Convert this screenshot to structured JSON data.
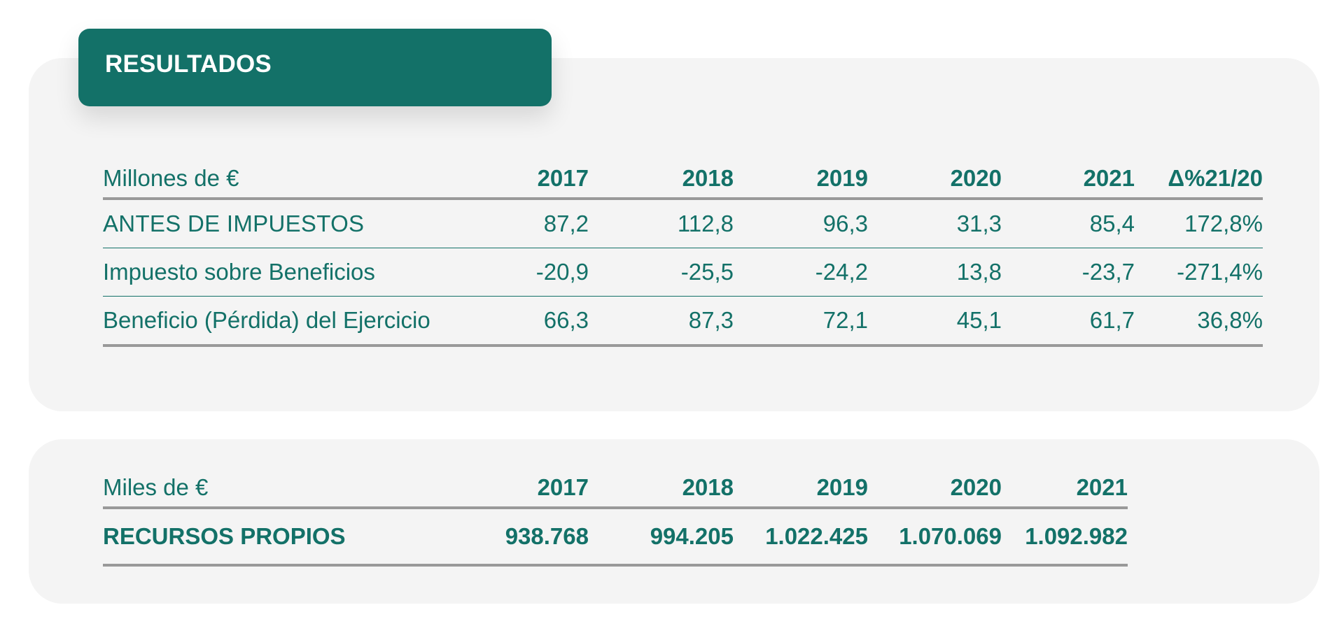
{
  "section_title": "RESULTADOS",
  "results_table": {
    "unit_label": "Millones de €",
    "columns": [
      "2017",
      "2018",
      "2019",
      "2020",
      "2021",
      "Δ%21/20"
    ],
    "rows": [
      {
        "label": "ANTES DE IMPUESTOS",
        "values": [
          "87,2",
          "112,8",
          "96,3",
          "31,3",
          "85,4",
          "172,8%"
        ]
      },
      {
        "label": "Impuesto sobre Beneficios",
        "values": [
          "-20,9",
          "-25,5",
          "-24,2",
          "13,8",
          "-23,7",
          "-271,4%"
        ]
      },
      {
        "label": "Beneficio (Pérdida) del Ejercicio",
        "values": [
          "66,3",
          "87,3",
          "72,1",
          "45,1",
          "61,7",
          "36,8%"
        ]
      }
    ]
  },
  "equity_table": {
    "unit_label": "Miles de €",
    "columns": [
      "2017",
      "2018",
      "2019",
      "2020",
      "2021"
    ],
    "rows": [
      {
        "label": "RECURSOS PROPIOS",
        "values": [
          "938.768",
          "994.205",
          "1.022.425",
          "1.070.069",
          "1.092.982"
        ]
      }
    ]
  },
  "colors": {
    "accent": "#137168",
    "panel_background": "#f4f4f4",
    "rule": "#999999"
  }
}
